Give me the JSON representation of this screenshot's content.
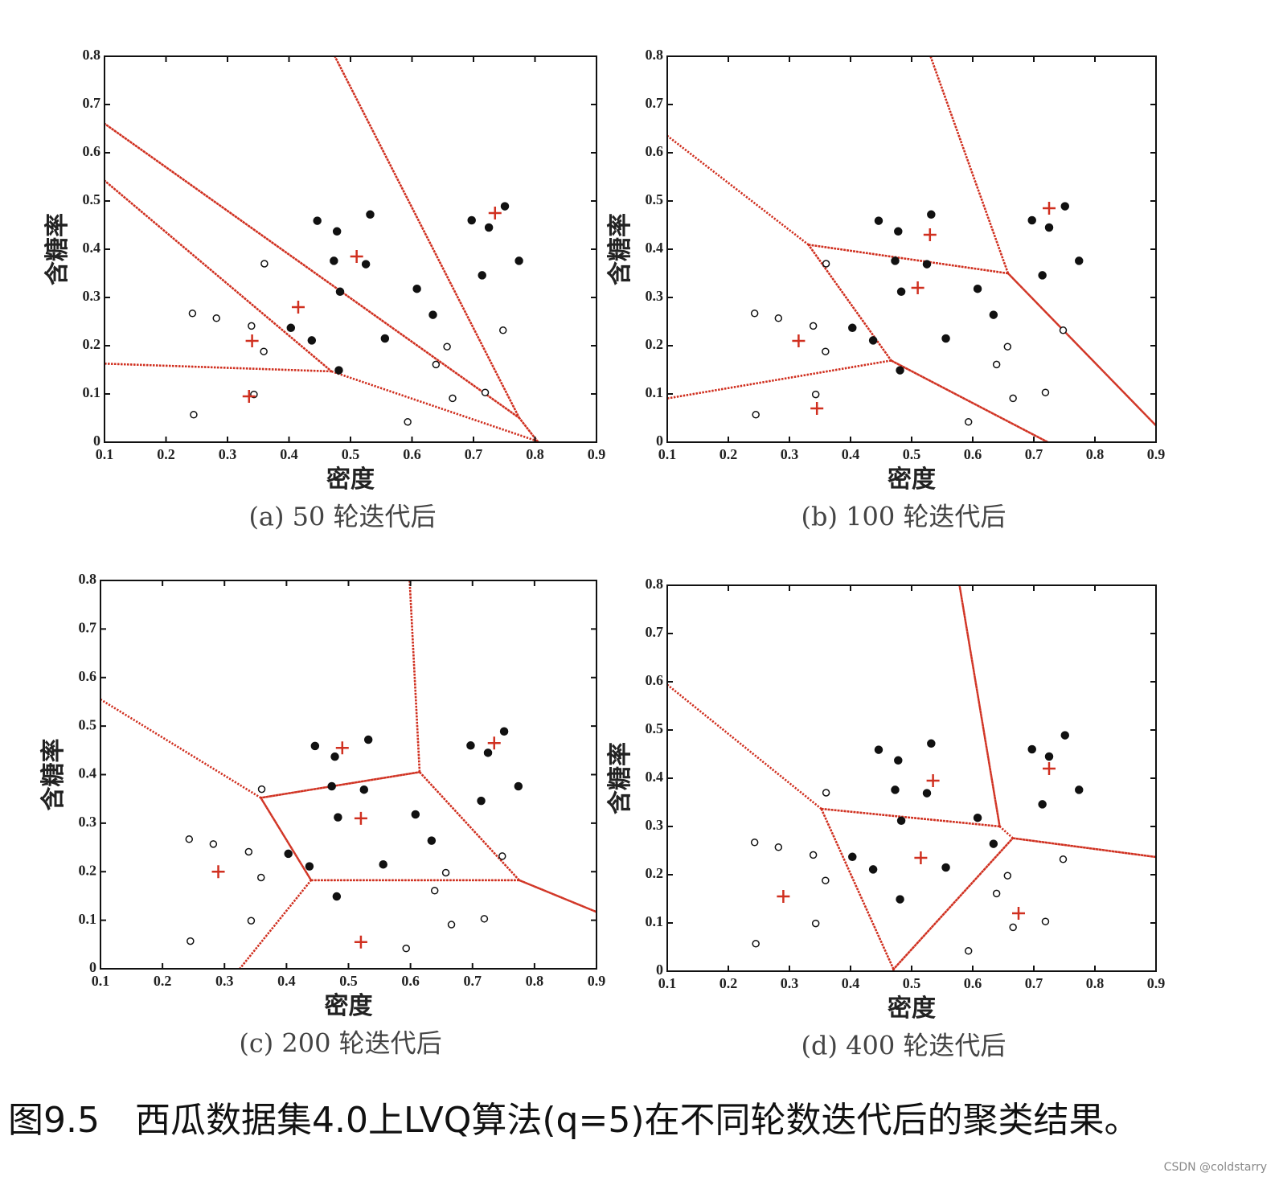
{
  "chart_data": [
    {
      "type": "scatter",
      "title": "(a) 50 轮迭代后",
      "xlabel": "密度",
      "ylabel": "含糖率",
      "xlim": [
        0.1,
        0.9
      ],
      "xticks": [
        0.1,
        0.2,
        0.3,
        0.4,
        0.5,
        0.6,
        0.7,
        0.8,
        0.9
      ],
      "ylim": [
        0,
        0.8
      ],
      "yticks": [
        0,
        0.1,
        0.2,
        0.3,
        0.4,
        0.5,
        0.6,
        0.7,
        0.8
      ],
      "voronoi": true,
      "series": [
        {
          "marker": "filled",
          "color": "#111111",
          "x": [
            0.697,
            0.774,
            0.634,
            0.608,
            0.556,
            0.403,
            0.481,
            0.437,
            0.714,
            0.483,
            0.478,
            0.525,
            0.751,
            0.532,
            0.473,
            0.725,
            0.446
          ],
          "values": [
            0.46,
            0.376,
            0.264,
            0.318,
            0.215,
            0.237,
            0.149,
            0.211,
            0.346,
            0.312,
            0.437,
            0.369,
            0.489,
            0.472,
            0.376,
            0.445,
            0.459
          ]
        },
        {
          "marker": "open",
          "color": "#111111",
          "x": [
            0.666,
            0.243,
            0.245,
            0.343,
            0.639,
            0.657,
            0.36,
            0.593,
            0.719,
            0.359,
            0.339,
            0.282,
            0.748
          ],
          "values": [
            0.091,
            0.267,
            0.057,
            0.099,
            0.161,
            0.198,
            0.37,
            0.042,
            0.103,
            0.188,
            0.241,
            0.257,
            0.232
          ]
        },
        {
          "marker": "plus",
          "color": "#d03020",
          "x": [
            0.34,
            0.335,
            0.415,
            0.51,
            0.735
          ],
          "values": [
            0.21,
            0.095,
            0.28,
            0.385,
            0.475
          ]
        }
      ]
    },
    {
      "type": "scatter",
      "title": "(b) 100 轮迭代后",
      "xlabel": "密度",
      "ylabel": "含糖率",
      "xlim": [
        0.1,
        0.9
      ],
      "xticks": [
        0.1,
        0.2,
        0.3,
        0.4,
        0.5,
        0.6,
        0.7,
        0.8,
        0.9
      ],
      "ylim": [
        0,
        0.8
      ],
      "yticks": [
        0,
        0.1,
        0.2,
        0.3,
        0.4,
        0.5,
        0.6,
        0.7,
        0.8
      ],
      "voronoi": true,
      "series": [
        {
          "marker": "filled",
          "color": "#111111",
          "x": [
            0.697,
            0.774,
            0.634,
            0.608,
            0.556,
            0.403,
            0.481,
            0.437,
            0.714,
            0.483,
            0.478,
            0.525,
            0.751,
            0.532,
            0.473,
            0.725,
            0.446
          ],
          "values": [
            0.46,
            0.376,
            0.264,
            0.318,
            0.215,
            0.237,
            0.149,
            0.211,
            0.346,
            0.312,
            0.437,
            0.369,
            0.489,
            0.472,
            0.376,
            0.445,
            0.459
          ]
        },
        {
          "marker": "open",
          "color": "#111111",
          "x": [
            0.666,
            0.243,
            0.245,
            0.343,
            0.639,
            0.657,
            0.36,
            0.593,
            0.719,
            0.359,
            0.339,
            0.282,
            0.748
          ],
          "values": [
            0.091,
            0.267,
            0.057,
            0.099,
            0.161,
            0.198,
            0.37,
            0.042,
            0.103,
            0.188,
            0.241,
            0.257,
            0.232
          ]
        },
        {
          "marker": "plus",
          "color": "#d03020",
          "x": [
            0.315,
            0.345,
            0.51,
            0.53,
            0.725
          ],
          "values": [
            0.21,
            0.07,
            0.32,
            0.43,
            0.485
          ]
        }
      ]
    },
    {
      "type": "scatter",
      "title": "(c) 200 轮迭代后",
      "xlabel": "密度",
      "ylabel": "含糖率",
      "xlim": [
        0.1,
        0.9
      ],
      "xticks": [
        0.1,
        0.2,
        0.3,
        0.4,
        0.5,
        0.6,
        0.7,
        0.8,
        0.9
      ],
      "ylim": [
        0,
        0.8
      ],
      "yticks": [
        0,
        0.1,
        0.2,
        0.3,
        0.4,
        0.5,
        0.6,
        0.7,
        0.8
      ],
      "voronoi": true,
      "series": [
        {
          "marker": "filled",
          "color": "#111111",
          "x": [
            0.697,
            0.774,
            0.634,
            0.608,
            0.556,
            0.403,
            0.481,
            0.437,
            0.714,
            0.483,
            0.478,
            0.525,
            0.751,
            0.532,
            0.473,
            0.725,
            0.446
          ],
          "values": [
            0.46,
            0.376,
            0.264,
            0.318,
            0.215,
            0.237,
            0.149,
            0.211,
            0.346,
            0.312,
            0.437,
            0.369,
            0.489,
            0.472,
            0.376,
            0.445,
            0.459
          ]
        },
        {
          "marker": "open",
          "color": "#111111",
          "x": [
            0.666,
            0.243,
            0.245,
            0.343,
            0.639,
            0.657,
            0.36,
            0.593,
            0.719,
            0.359,
            0.339,
            0.282,
            0.748
          ],
          "values": [
            0.091,
            0.267,
            0.057,
            0.099,
            0.161,
            0.198,
            0.37,
            0.042,
            0.103,
            0.188,
            0.241,
            0.257,
            0.232
          ]
        },
        {
          "marker": "plus",
          "color": "#d03020",
          "x": [
            0.29,
            0.52,
            0.52,
            0.49,
            0.735
          ],
          "values": [
            0.2,
            0.055,
            0.31,
            0.455,
            0.465
          ]
        }
      ]
    },
    {
      "type": "scatter",
      "title": "(d) 400 轮迭代后",
      "xlabel": "密度",
      "ylabel": "含糖率",
      "xlim": [
        0.1,
        0.9
      ],
      "xticks": [
        0.1,
        0.2,
        0.3,
        0.4,
        0.5,
        0.6,
        0.7,
        0.8,
        0.9
      ],
      "ylim": [
        0,
        0.8
      ],
      "yticks": [
        0,
        0.1,
        0.2,
        0.3,
        0.4,
        0.5,
        0.6,
        0.7,
        0.8
      ],
      "voronoi": true,
      "series": [
        {
          "marker": "filled",
          "color": "#111111",
          "x": [
            0.697,
            0.774,
            0.634,
            0.608,
            0.556,
            0.403,
            0.481,
            0.437,
            0.714,
            0.483,
            0.478,
            0.525,
            0.751,
            0.532,
            0.473,
            0.725,
            0.446
          ],
          "values": [
            0.46,
            0.376,
            0.264,
            0.318,
            0.215,
            0.237,
            0.149,
            0.211,
            0.346,
            0.312,
            0.437,
            0.369,
            0.489,
            0.472,
            0.376,
            0.445,
            0.459
          ]
        },
        {
          "marker": "open",
          "color": "#111111",
          "x": [
            0.666,
            0.243,
            0.245,
            0.343,
            0.639,
            0.657,
            0.36,
            0.593,
            0.719,
            0.359,
            0.339,
            0.282,
            0.748
          ],
          "values": [
            0.091,
            0.267,
            0.057,
            0.099,
            0.161,
            0.198,
            0.37,
            0.042,
            0.103,
            0.188,
            0.241,
            0.257,
            0.232
          ]
        },
        {
          "marker": "plus",
          "color": "#d03020",
          "x": [
            0.29,
            0.515,
            0.535,
            0.675,
            0.725
          ],
          "values": [
            0.155,
            0.235,
            0.395,
            0.12,
            0.42
          ]
        }
      ]
    }
  ],
  "figure_caption": "图9.5　西瓜数据集4.0上LVQ算法(q=5)在不同轮数迭代后的聚类结果。",
  "watermark": "CSDN @coldstarry"
}
